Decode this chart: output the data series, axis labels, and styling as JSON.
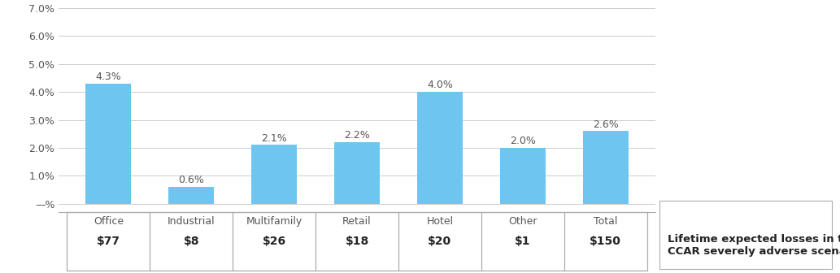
{
  "categories": [
    "Office",
    "Industrial",
    "Multifamily",
    "Retail",
    "Hotel",
    "Other",
    "Total"
  ],
  "values": [
    4.3,
    0.6,
    2.1,
    2.2,
    4.0,
    2.0,
    2.6
  ],
  "labels": [
    "4.3%",
    "0.6%",
    "2.1%",
    "2.2%",
    "4.0%",
    "2.0%",
    "2.6%"
  ],
  "table_values": [
    "$77",
    "$8",
    "$26",
    "$18",
    "$20",
    "$1",
    "$150"
  ],
  "table_note": "Lifetime expected losses in the\nCCAR severely adverse scenario",
  "bar_color": "#6EC6F0",
  "background_color": "#ffffff",
  "grid_color": "#cccccc",
  "ylim": [
    -0.3,
    7.0
  ],
  "yticks": [
    0.0,
    1.0,
    2.0,
    3.0,
    4.0,
    5.0,
    6.0,
    7.0
  ],
  "ytick_labels": [
    "—%",
    "1.0%",
    "2.0%",
    "3.0%",
    "4.0%",
    "5.0%",
    "6.0%",
    "7.0%"
  ],
  "title_fontsize": 10,
  "label_fontsize": 9,
  "tick_fontsize": 9,
  "table_fontsize": 10
}
